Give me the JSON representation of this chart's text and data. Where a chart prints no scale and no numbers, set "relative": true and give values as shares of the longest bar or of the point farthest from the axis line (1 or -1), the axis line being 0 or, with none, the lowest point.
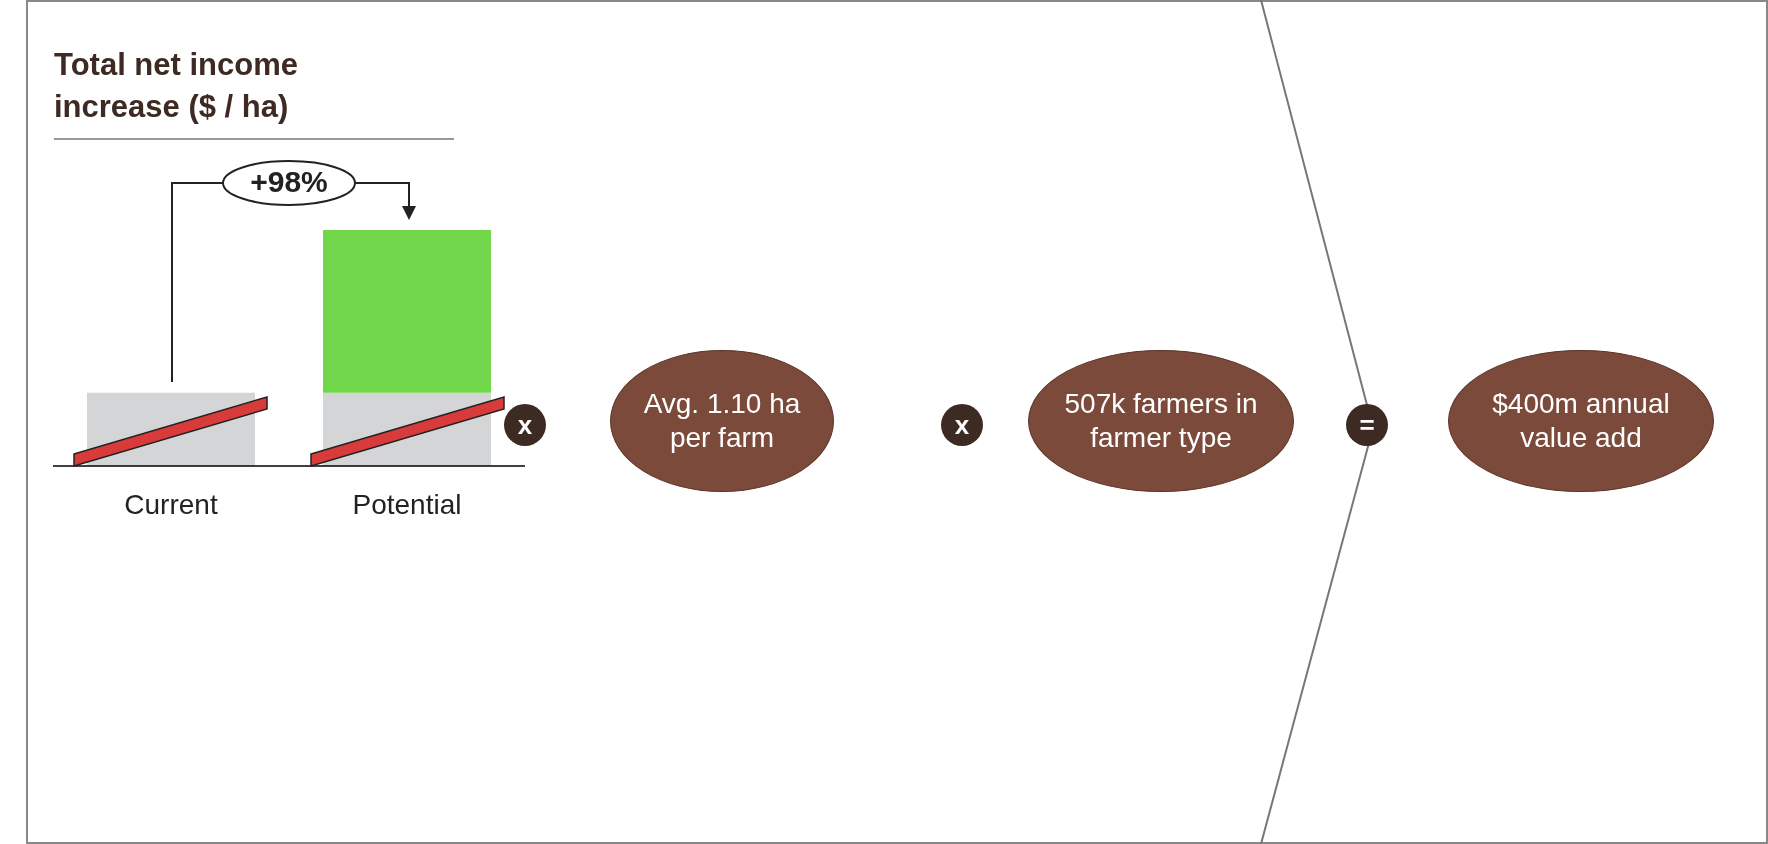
{
  "chart_data": {
    "type": "bar",
    "stacked": true,
    "relative": true,
    "title": "Total net income increase ($ / ha)",
    "categories": [
      "Current",
      "Potential"
    ],
    "series": [
      {
        "color": "#d4d5d7",
        "values": [
          0.31,
          0.31
        ]
      },
      {
        "color": "#72d64a",
        "values": [
          null,
          0.69
        ]
      }
    ],
    "annotations": [
      "+98%",
      "x",
      "Avg. 1.10 ha per farm",
      "x",
      "507k farmers in farmer type",
      "=",
      "$400m annual value add"
    ]
  }
}
